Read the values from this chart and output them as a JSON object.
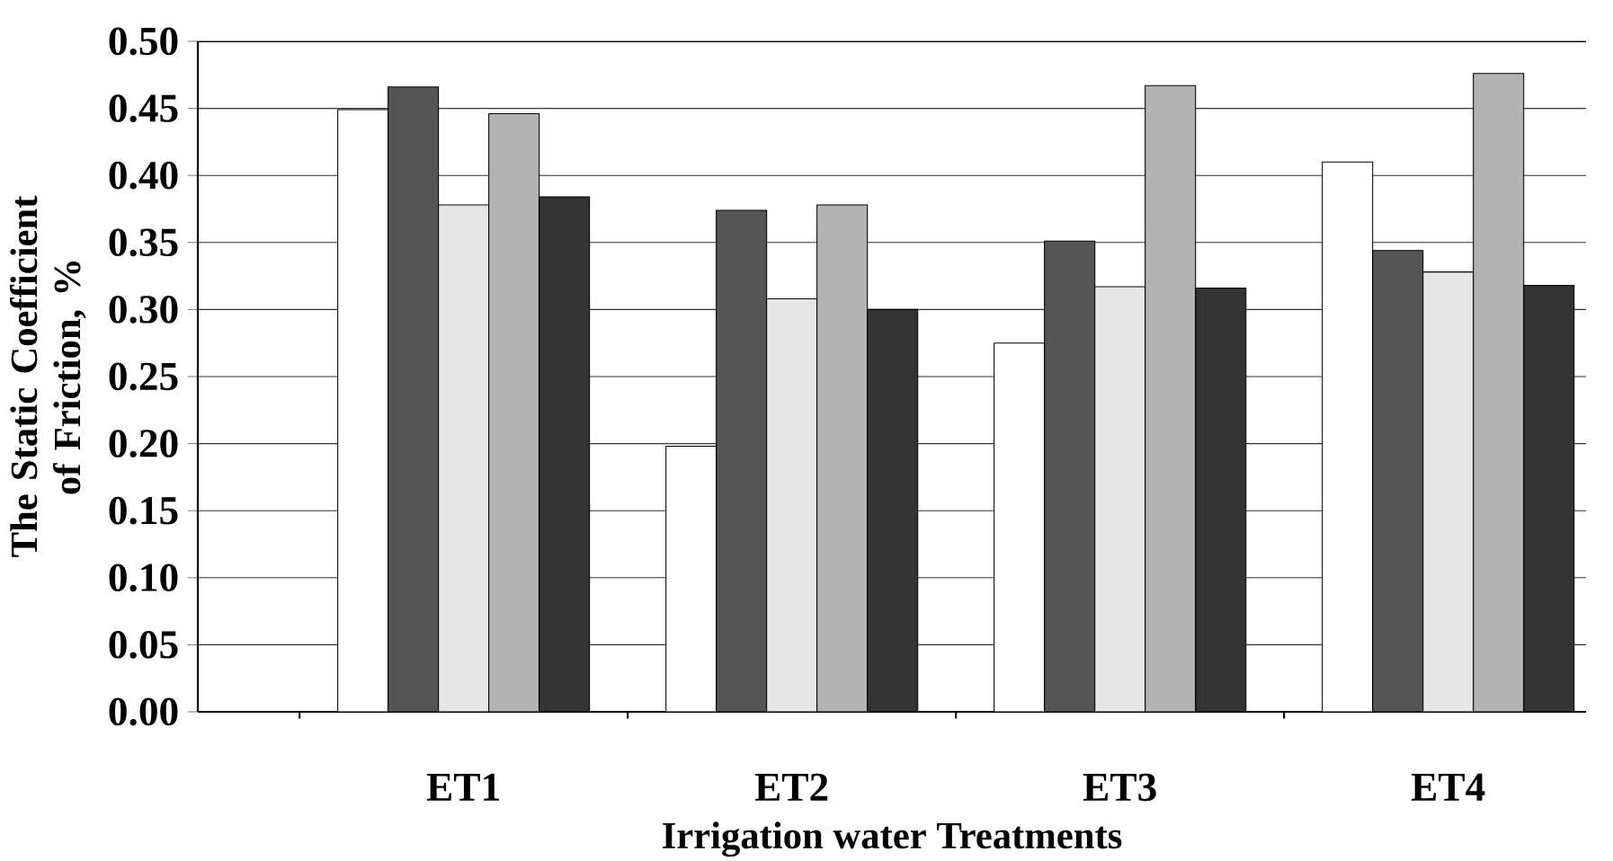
{
  "chart_data": {
    "type": "bar",
    "xlabel": "Irrigation water Treatments",
    "ylabel": "The Static Coefficient of Friction, %",
    "categories": [
      "ET1",
      "ET2",
      "ET3",
      "ET4"
    ],
    "series": [
      {
        "color": "#ffffff",
        "values": [
          0.449,
          0.198,
          0.275,
          0.41
        ]
      },
      {
        "color": "#555555",
        "values": [
          0.466,
          0.374,
          0.351,
          0.344
        ]
      },
      {
        "color": "#e6e6e6",
        "values": [
          0.378,
          0.308,
          0.317,
          0.328
        ]
      },
      {
        "color": "#b3b3b3",
        "values": [
          0.446,
          0.378,
          0.467,
          0.476
        ]
      },
      {
        "color": "#333333",
        "values": [
          0.384,
          0.3,
          0.316,
          0.318
        ]
      }
    ],
    "ylim": [
      0,
      0.5
    ],
    "yticks": [
      {
        "value": 0,
        "label": "0.00"
      },
      0.05,
      {
        "value": 0.1,
        "label": "0.10"
      },
      0.15,
      {
        "value": 0.2,
        "label": "0.20"
      },
      0.25,
      {
        "value": 0.3,
        "label": "0.30"
      },
      0.35,
      {
        "value": 0.4,
        "label": "0.40"
      },
      0.45,
      {
        "value": 0.5,
        "label": "0.50"
      }
    ],
    "grid": "y"
  }
}
